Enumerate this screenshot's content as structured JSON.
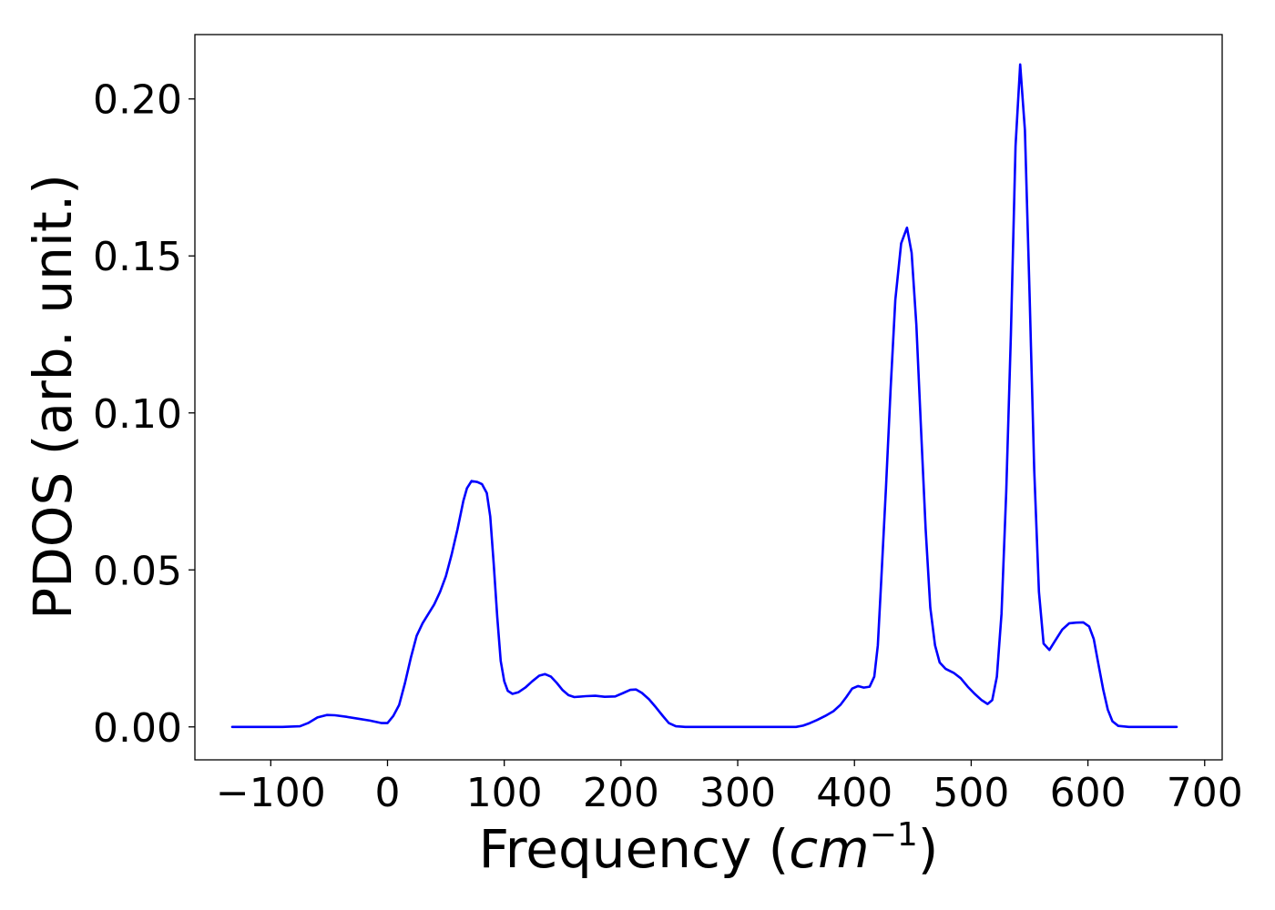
{
  "chart_data": {
    "type": "line",
    "title": "",
    "xlabel": "Frequency (",
    "xlabel_math": "cm",
    "xlabel_exp": "−1",
    "xlabel_close": ")",
    "ylabel": "PDOS (arb. unit.)",
    "xlim": [
      -165,
      715
    ],
    "ylim": [
      -0.0105,
      0.2205
    ],
    "x_ticks": [
      -100,
      0,
      100,
      200,
      300,
      400,
      500,
      600,
      700
    ],
    "x_tick_labels": [
      "−100",
      "0",
      "100",
      "200",
      "300",
      "400",
      "500",
      "600",
      "700"
    ],
    "y_ticks": [
      0.0,
      0.05,
      0.1,
      0.15,
      0.2
    ],
    "y_tick_labels": [
      "0.00",
      "0.05",
      "0.10",
      "0.15",
      "0.20"
    ],
    "grid": false,
    "colors": {
      "line": "#0000ff"
    },
    "series": [
      {
        "points": [
          [
            -133,
            0.0
          ],
          [
            -110,
            0.0
          ],
          [
            -90,
            0.0
          ],
          [
            -75,
            0.0002
          ],
          [
            -68,
            0.0012
          ],
          [
            -60,
            0.003
          ],
          [
            -52,
            0.0038
          ],
          [
            -45,
            0.0037
          ],
          [
            -35,
            0.0032
          ],
          [
            -25,
            0.0026
          ],
          [
            -15,
            0.002
          ],
          [
            -5,
            0.0012
          ],
          [
            0,
            0.0012
          ],
          [
            5,
            0.0035
          ],
          [
            10,
            0.007
          ],
          [
            15,
            0.014
          ],
          [
            20,
            0.022
          ],
          [
            25,
            0.029
          ],
          [
            30,
            0.033
          ],
          [
            35,
            0.036
          ],
          [
            40,
            0.039
          ],
          [
            45,
            0.043
          ],
          [
            50,
            0.048
          ],
          [
            55,
            0.055
          ],
          [
            60,
            0.063
          ],
          [
            65,
            0.072
          ],
          [
            68,
            0.076
          ],
          [
            72,
            0.0783
          ],
          [
            77,
            0.078
          ],
          [
            81,
            0.0773
          ],
          [
            85,
            0.0745
          ],
          [
            88,
            0.067
          ],
          [
            91,
            0.052
          ],
          [
            94,
            0.035
          ],
          [
            97,
            0.021
          ],
          [
            100,
            0.0145
          ],
          [
            103,
            0.0115
          ],
          [
            107,
            0.0105
          ],
          [
            112,
            0.011
          ],
          [
            118,
            0.0125
          ],
          [
            124,
            0.0145
          ],
          [
            130,
            0.0163
          ],
          [
            135,
            0.0168
          ],
          [
            140,
            0.016
          ],
          [
            145,
            0.014
          ],
          [
            150,
            0.0117
          ],
          [
            155,
            0.0101
          ],
          [
            160,
            0.0095
          ],
          [
            170,
            0.0098
          ],
          [
            178,
            0.0099
          ],
          [
            186,
            0.0096
          ],
          [
            195,
            0.0097
          ],
          [
            202,
            0.0108
          ],
          [
            208,
            0.0118
          ],
          [
            213,
            0.0119
          ],
          [
            218,
            0.0108
          ],
          [
            224,
            0.0088
          ],
          [
            230,
            0.0062
          ],
          [
            236,
            0.0034
          ],
          [
            241,
            0.0012
          ],
          [
            247,
            0.0002
          ],
          [
            255,
            0.0
          ],
          [
            270,
            0.0
          ],
          [
            300,
            0.0
          ],
          [
            330,
            0.0
          ],
          [
            350,
            0.0
          ],
          [
            356,
            0.0004
          ],
          [
            362,
            0.0012
          ],
          [
            368,
            0.0022
          ],
          [
            375,
            0.0035
          ],
          [
            382,
            0.005
          ],
          [
            388,
            0.007
          ],
          [
            393,
            0.0095
          ],
          [
            398,
            0.0122
          ],
          [
            403,
            0.013
          ],
          [
            408,
            0.0125
          ],
          [
            413,
            0.0128
          ],
          [
            417,
            0.016
          ],
          [
            420,
            0.026
          ],
          [
            423,
            0.047
          ],
          [
            427,
            0.076
          ],
          [
            431,
            0.108
          ],
          [
            435,
            0.136
          ],
          [
            440,
            0.154
          ],
          [
            445,
            0.159
          ],
          [
            449,
            0.151
          ],
          [
            453,
            0.128
          ],
          [
            457,
            0.095
          ],
          [
            461,
            0.063
          ],
          [
            465,
            0.038
          ],
          [
            469,
            0.026
          ],
          [
            473,
            0.0205
          ],
          [
            478,
            0.0185
          ],
          [
            485,
            0.0172
          ],
          [
            491,
            0.0155
          ],
          [
            497,
            0.0128
          ],
          [
            503,
            0.0105
          ],
          [
            509,
            0.0085
          ],
          [
            514,
            0.0073
          ],
          [
            518,
            0.0085
          ],
          [
            522,
            0.016
          ],
          [
            526,
            0.036
          ],
          [
            530,
            0.075
          ],
          [
            534,
            0.125
          ],
          [
            538,
            0.185
          ],
          [
            542,
            0.211
          ],
          [
            546,
            0.19
          ],
          [
            550,
            0.138
          ],
          [
            554,
            0.082
          ],
          [
            558,
            0.043
          ],
          [
            562,
            0.0265
          ],
          [
            567,
            0.0245
          ],
          [
            572,
            0.0275
          ],
          [
            578,
            0.031
          ],
          [
            584,
            0.033
          ],
          [
            590,
            0.0332
          ],
          [
            596,
            0.0333
          ],
          [
            601,
            0.032
          ],
          [
            605,
            0.028
          ],
          [
            609,
            0.02
          ],
          [
            613,
            0.012
          ],
          [
            617,
            0.0055
          ],
          [
            621,
            0.0018
          ],
          [
            626,
            0.0003
          ],
          [
            635,
            0.0
          ],
          [
            655,
            0.0
          ],
          [
            676,
            0.0
          ]
        ]
      }
    ]
  }
}
